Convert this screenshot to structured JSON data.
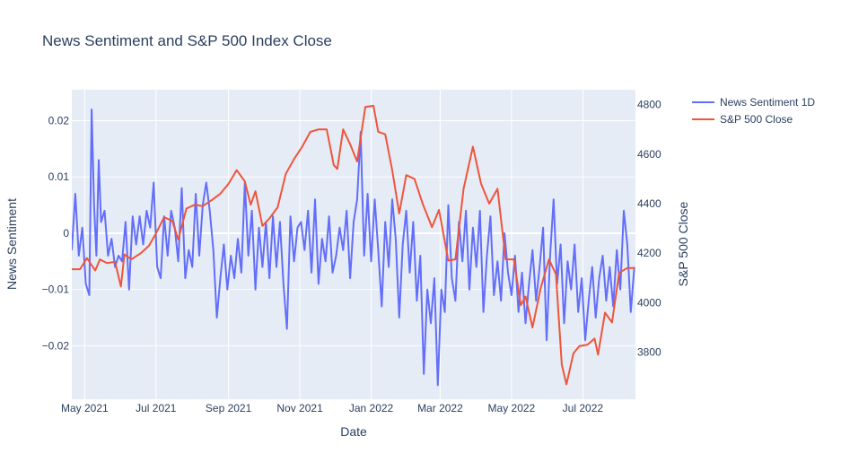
{
  "chart_data": {
    "type": "line",
    "title": "News Sentiment and S&P 500 Index Close",
    "xlabel": "Date",
    "ylabel_left": "News Sentiment",
    "ylabel_right": "S&P 500 Close",
    "x_range": [
      "2021-04-20",
      "2022-08-15"
    ],
    "ylim_left": [
      -0.0295,
      0.0255
    ],
    "ylim_right": [
      3610,
      4860
    ],
    "grid": true,
    "legend_position": "top-right, outside plot",
    "x_ticks": [
      {
        "date": "2021-05-01",
        "label": "May 2021"
      },
      {
        "date": "2021-07-01",
        "label": "Jul 2021"
      },
      {
        "date": "2021-09-01",
        "label": "Sep 2021"
      },
      {
        "date": "2021-11-01",
        "label": "Nov 2021"
      },
      {
        "date": "2022-01-01",
        "label": "Jan 2022"
      },
      {
        "date": "2022-03-01",
        "label": "Mar 2022"
      },
      {
        "date": "2022-05-01",
        "label": "May 2022"
      },
      {
        "date": "2022-07-01",
        "label": "Jul 2022"
      }
    ],
    "y_ticks_left": [
      {
        "value": 0.02,
        "label": "0.02"
      },
      {
        "value": 0.01,
        "label": "0.01"
      },
      {
        "value": 0,
        "label": "0"
      },
      {
        "value": -0.01,
        "label": "−0.01"
      },
      {
        "value": -0.02,
        "label": "−0.02"
      }
    ],
    "y_ticks_right": [
      {
        "value": 4800,
        "label": "4800"
      },
      {
        "value": 4600,
        "label": "4600"
      },
      {
        "value": 4400,
        "label": "4400"
      },
      {
        "value": 4200,
        "label": "4200"
      },
      {
        "value": 4000,
        "label": "4000"
      },
      {
        "value": 3800,
        "label": "3800"
      }
    ],
    "series": [
      {
        "name": "News Sentiment 1D",
        "color": "#636efa",
        "axis": "left",
        "points": [
          [
            "2021-04-20",
            -0.003
          ],
          [
            "2021-04-23",
            0.007
          ],
          [
            "2021-04-26",
            -0.004
          ],
          [
            "2021-04-29",
            0.001
          ],
          [
            "2021-05-02",
            -0.009
          ],
          [
            "2021-05-05",
            -0.011
          ],
          [
            "2021-05-07",
            0.022
          ],
          [
            "2021-05-09",
            0.005
          ],
          [
            "2021-05-11",
            -0.004
          ],
          [
            "2021-05-13",
            0.013
          ],
          [
            "2021-05-15",
            0.002
          ],
          [
            "2021-05-18",
            0.004
          ],
          [
            "2021-05-21",
            -0.004
          ],
          [
            "2021-05-24",
            -0.001
          ],
          [
            "2021-05-27",
            -0.006
          ],
          [
            "2021-05-30",
            -0.004
          ],
          [
            "2021-06-02",
            -0.005
          ],
          [
            "2021-06-05",
            0.002
          ],
          [
            "2021-06-08",
            -0.01
          ],
          [
            "2021-06-11",
            0.003
          ],
          [
            "2021-06-14",
            -0.002
          ],
          [
            "2021-06-17",
            0.003
          ],
          [
            "2021-06-20",
            -0.002
          ],
          [
            "2021-06-23",
            0.004
          ],
          [
            "2021-06-26",
            0.001
          ],
          [
            "2021-06-29",
            0.009
          ],
          [
            "2021-07-02",
            -0.006
          ],
          [
            "2021-07-05",
            -0.008
          ],
          [
            "2021-07-08",
            0.003
          ],
          [
            "2021-07-11",
            -0.004
          ],
          [
            "2021-07-14",
            0.004
          ],
          [
            "2021-07-17",
            0.001
          ],
          [
            "2021-07-20",
            -0.005
          ],
          [
            "2021-07-23",
            0.008
          ],
          [
            "2021-07-26",
            -0.008
          ],
          [
            "2021-07-29",
            -0.003
          ],
          [
            "2021-08-01",
            -0.006
          ],
          [
            "2021-08-04",
            0.007
          ],
          [
            "2021-08-07",
            -0.004
          ],
          [
            "2021-08-10",
            0.005
          ],
          [
            "2021-08-13",
            0.009
          ],
          [
            "2021-08-16",
            0.004
          ],
          [
            "2021-08-19",
            -0.003
          ],
          [
            "2021-08-22",
            -0.015
          ],
          [
            "2021-08-25",
            -0.008
          ],
          [
            "2021-08-28",
            -0.002
          ],
          [
            "2021-08-31",
            -0.01
          ],
          [
            "2021-09-03",
            -0.004
          ],
          [
            "2021-09-06",
            -0.008
          ],
          [
            "2021-09-09",
            -0.001
          ],
          [
            "2021-09-12",
            -0.007
          ],
          [
            "2021-09-15",
            0.009
          ],
          [
            "2021-09-18",
            -0.004
          ],
          [
            "2021-09-21",
            0.004
          ],
          [
            "2021-09-24",
            -0.01
          ],
          [
            "2021-09-27",
            0.001
          ],
          [
            "2021-09-30",
            -0.006
          ],
          [
            "2021-10-03",
            0.002
          ],
          [
            "2021-10-06",
            -0.008
          ],
          [
            "2021-10-09",
            0.003
          ],
          [
            "2021-10-12",
            -0.006
          ],
          [
            "2021-10-15",
            0.002
          ],
          [
            "2021-10-18",
            -0.009
          ],
          [
            "2021-10-21",
            -0.017
          ],
          [
            "2021-10-24",
            0.003
          ],
          [
            "2021-10-27",
            -0.005
          ],
          [
            "2021-10-30",
            0.001
          ],
          [
            "2021-11-02",
            0.002
          ],
          [
            "2021-11-05",
            -0.003
          ],
          [
            "2021-11-08",
            0.004
          ],
          [
            "2021-11-11",
            -0.007
          ],
          [
            "2021-11-14",
            0.006
          ],
          [
            "2021-11-17",
            -0.009
          ],
          [
            "2021-11-20",
            -0.001
          ],
          [
            "2021-11-23",
            -0.005
          ],
          [
            "2021-11-26",
            0.003
          ],
          [
            "2021-11-29",
            -0.007
          ],
          [
            "2021-12-02",
            -0.004
          ],
          [
            "2021-12-05",
            0.001
          ],
          [
            "2021-12-08",
            -0.003
          ],
          [
            "2021-12-11",
            0.004
          ],
          [
            "2021-12-14",
            -0.008
          ],
          [
            "2021-12-17",
            0.002
          ],
          [
            "2021-12-20",
            0.006
          ],
          [
            "2021-12-23",
            0.018
          ],
          [
            "2021-12-26",
            -0.004
          ],
          [
            "2021-12-29",
            0.007
          ],
          [
            "2022-01-01",
            -0.005
          ],
          [
            "2022-01-04",
            0.006
          ],
          [
            "2022-01-07",
            -0.003
          ],
          [
            "2022-01-10",
            -0.013
          ],
          [
            "2022-01-13",
            0.002
          ],
          [
            "2022-01-16",
            -0.006
          ],
          [
            "2022-01-19",
            0.006
          ],
          [
            "2022-01-22",
            -0.001
          ],
          [
            "2022-01-25",
            -0.015
          ],
          [
            "2022-01-28",
            -0.002
          ],
          [
            "2022-01-31",
            0.004
          ],
          [
            "2022-02-03",
            -0.007
          ],
          [
            "2022-02-06",
            0.002
          ],
          [
            "2022-02-09",
            -0.012
          ],
          [
            "2022-02-12",
            -0.004
          ],
          [
            "2022-02-15",
            -0.025
          ],
          [
            "2022-02-18",
            -0.01
          ],
          [
            "2022-02-21",
            -0.016
          ],
          [
            "2022-02-24",
            -0.008
          ],
          [
            "2022-02-27",
            -0.027
          ],
          [
            "2022-03-02",
            -0.01
          ],
          [
            "2022-03-05",
            -0.014
          ],
          [
            "2022-03-08",
            0.005
          ],
          [
            "2022-03-11",
            -0.008
          ],
          [
            "2022-03-14",
            -0.012
          ],
          [
            "2022-03-17",
            0.002
          ],
          [
            "2022-03-20",
            -0.005
          ],
          [
            "2022-03-23",
            0.004
          ],
          [
            "2022-03-26",
            -0.01
          ],
          [
            "2022-03-29",
            0.001
          ],
          [
            "2022-04-01",
            -0.006
          ],
          [
            "2022-04-04",
            0.004
          ],
          [
            "2022-04-07",
            -0.014
          ],
          [
            "2022-04-10",
            -0.004
          ],
          [
            "2022-04-13",
            0.003
          ],
          [
            "2022-04-16",
            -0.011
          ],
          [
            "2022-04-19",
            -0.005
          ],
          [
            "2022-04-22",
            -0.012
          ],
          [
            "2022-04-25",
            0.0
          ],
          [
            "2022-04-28",
            -0.007
          ],
          [
            "2022-05-01",
            -0.011
          ],
          [
            "2022-05-04",
            -0.004
          ],
          [
            "2022-05-07",
            -0.014
          ],
          [
            "2022-05-10",
            -0.007
          ],
          [
            "2022-05-13",
            -0.016
          ],
          [
            "2022-05-16",
            -0.009
          ],
          [
            "2022-05-19",
            -0.003
          ],
          [
            "2022-05-22",
            -0.012
          ],
          [
            "2022-05-25",
            -0.006
          ],
          [
            "2022-05-28",
            0.001
          ],
          [
            "2022-05-31",
            -0.019
          ],
          [
            "2022-06-03",
            -0.004
          ],
          [
            "2022-06-06",
            0.006
          ],
          [
            "2022-06-09",
            -0.009
          ],
          [
            "2022-06-12",
            -0.002
          ],
          [
            "2022-06-15",
            -0.016
          ],
          [
            "2022-06-18",
            -0.005
          ],
          [
            "2022-06-21",
            -0.01
          ],
          [
            "2022-06-24",
            -0.002
          ],
          [
            "2022-06-27",
            -0.014
          ],
          [
            "2022-06-30",
            -0.008
          ],
          [
            "2022-07-03",
            -0.019
          ],
          [
            "2022-07-06",
            -0.012
          ],
          [
            "2022-07-09",
            -0.006
          ],
          [
            "2022-07-12",
            -0.015
          ],
          [
            "2022-07-15",
            -0.008
          ],
          [
            "2022-07-18",
            -0.004
          ],
          [
            "2022-07-21",
            -0.012
          ],
          [
            "2022-07-24",
            -0.006
          ],
          [
            "2022-07-27",
            -0.013
          ],
          [
            "2022-07-30",
            -0.003
          ],
          [
            "2022-08-02",
            -0.01
          ],
          [
            "2022-08-05",
            0.004
          ],
          [
            "2022-08-08",
            -0.002
          ],
          [
            "2022-08-11",
            -0.014
          ],
          [
            "2022-08-14",
            -0.006
          ]
        ]
      },
      {
        "name": "S&P 500 Close",
        "color": "#ef553b",
        "axis": "right",
        "points": [
          [
            "2021-04-20",
            4135
          ],
          [
            "2021-04-27",
            4135
          ],
          [
            "2021-05-03",
            4180
          ],
          [
            "2021-05-10",
            4130
          ],
          [
            "2021-05-14",
            4175
          ],
          [
            "2021-05-20",
            4160
          ],
          [
            "2021-05-27",
            4165
          ],
          [
            "2021-06-01",
            4065
          ],
          [
            "2021-06-04",
            4195
          ],
          [
            "2021-06-10",
            4175
          ],
          [
            "2021-06-18",
            4200
          ],
          [
            "2021-06-25",
            4230
          ],
          [
            "2021-07-01",
            4280
          ],
          [
            "2021-07-08",
            4345
          ],
          [
            "2021-07-15",
            4330
          ],
          [
            "2021-07-20",
            4255
          ],
          [
            "2021-07-27",
            4380
          ],
          [
            "2021-08-03",
            4395
          ],
          [
            "2021-08-10",
            4390
          ],
          [
            "2021-08-18",
            4415
          ],
          [
            "2021-08-25",
            4440
          ],
          [
            "2021-09-01",
            4480
          ],
          [
            "2021-09-08",
            4535
          ],
          [
            "2021-09-15",
            4490
          ],
          [
            "2021-09-20",
            4395
          ],
          [
            "2021-09-24",
            4450
          ],
          [
            "2021-09-30",
            4310
          ],
          [
            "2021-10-06",
            4340
          ],
          [
            "2021-10-13",
            4385
          ],
          [
            "2021-10-20",
            4520
          ],
          [
            "2021-10-27",
            4580
          ],
          [
            "2021-11-03",
            4630
          ],
          [
            "2021-11-10",
            4690
          ],
          [
            "2021-11-17",
            4700
          ],
          [
            "2021-11-24",
            4700
          ],
          [
            "2021-11-30",
            4555
          ],
          [
            "2021-12-03",
            4540
          ],
          [
            "2021-12-08",
            4700
          ],
          [
            "2021-12-14",
            4640
          ],
          [
            "2021-12-20",
            4570
          ],
          [
            "2021-12-27",
            4790
          ],
          [
            "2022-01-03",
            4795
          ],
          [
            "2022-01-07",
            4690
          ],
          [
            "2022-01-13",
            4680
          ],
          [
            "2022-01-19",
            4535
          ],
          [
            "2022-01-25",
            4360
          ],
          [
            "2022-01-31",
            4515
          ],
          [
            "2022-02-07",
            4500
          ],
          [
            "2022-02-14",
            4400
          ],
          [
            "2022-02-22",
            4305
          ],
          [
            "2022-02-28",
            4375
          ],
          [
            "2022-03-08",
            4170
          ],
          [
            "2022-03-14",
            4175
          ],
          [
            "2022-03-21",
            4460
          ],
          [
            "2022-03-29",
            4630
          ],
          [
            "2022-04-05",
            4480
          ],
          [
            "2022-04-12",
            4400
          ],
          [
            "2022-04-19",
            4460
          ],
          [
            "2022-04-26",
            4175
          ],
          [
            "2022-05-03",
            4175
          ],
          [
            "2022-05-09",
            3990
          ],
          [
            "2022-05-13",
            4025
          ],
          [
            "2022-05-19",
            3900
          ],
          [
            "2022-05-26",
            4060
          ],
          [
            "2022-06-02",
            4175
          ],
          [
            "2022-06-08",
            4115
          ],
          [
            "2022-06-13",
            3750
          ],
          [
            "2022-06-17",
            3670
          ],
          [
            "2022-06-23",
            3795
          ],
          [
            "2022-06-28",
            3825
          ],
          [
            "2022-07-05",
            3830
          ],
          [
            "2022-07-11",
            3855
          ],
          [
            "2022-07-14",
            3790
          ],
          [
            "2022-07-20",
            3960
          ],
          [
            "2022-07-26",
            3920
          ],
          [
            "2022-08-01",
            4120
          ],
          [
            "2022-08-08",
            4140
          ],
          [
            "2022-08-14",
            4140
          ]
        ]
      }
    ]
  }
}
